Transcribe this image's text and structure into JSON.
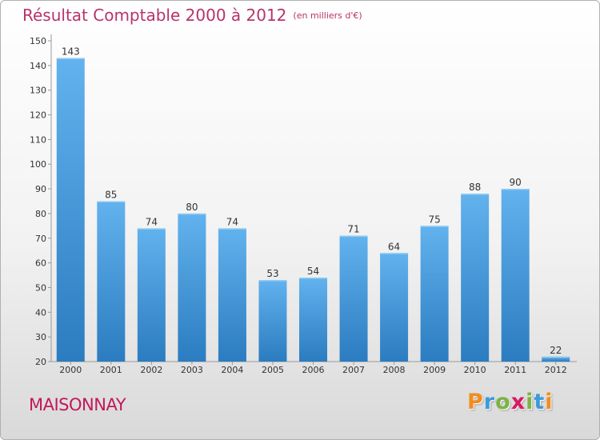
{
  "title": "Résultat Comptable 2000 à 2012",
  "subtitle": "(en milliers d'€)",
  "commune": "MAISONNAY",
  "logo": {
    "letters": [
      "P",
      "r",
      "o",
      "x",
      "i",
      "t",
      "i"
    ],
    "colors": [
      "#f28c1b",
      "#3b9ad9",
      "#7cb342",
      "#d81b60",
      "#7cb342",
      "#3b9ad9",
      "#f28c1b"
    ]
  },
  "colors": {
    "bar_top": "#62b2ee",
    "bar_bottom": "#2b7cc0",
    "title": "#b8336a",
    "commune": "#c2185b"
  },
  "chart_data": {
    "type": "bar",
    "categories": [
      "2000",
      "2001",
      "2002",
      "2003",
      "2004",
      "2005",
      "2006",
      "2007",
      "2008",
      "2009",
      "2010",
      "2011",
      "2012"
    ],
    "values": [
      143,
      85,
      74,
      80,
      74,
      53,
      54,
      71,
      64,
      75,
      88,
      90,
      22
    ],
    "ylim": [
      20,
      150
    ],
    "yticks": [
      20,
      30,
      40,
      50,
      60,
      70,
      80,
      90,
      100,
      110,
      120,
      130,
      140,
      150
    ],
    "grid": false
  }
}
